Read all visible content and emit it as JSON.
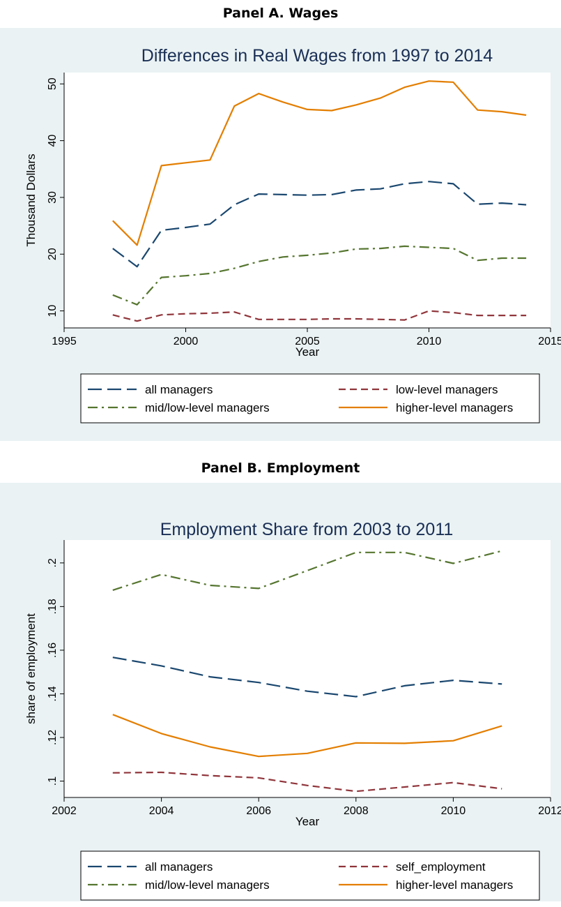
{
  "panels": [
    {
      "heading": "Panel A. Wages"
    },
    {
      "heading": "Panel B. Employment"
    }
  ],
  "chart_data": [
    {
      "type": "line",
      "title": "Differences in Real Wages from 1997 to 2014",
      "xlabel": "Year",
      "ylabel": "Thousand Dollars",
      "xlim": [
        1995,
        2015
      ],
      "ylim": [
        7,
        52
      ],
      "x_ticks": [
        1995,
        2000,
        2005,
        2010,
        2015
      ],
      "x_tick_labels": [
        "1995",
        "2000",
        "2005",
        "2010",
        "2015"
      ],
      "y_ticks": [
        10,
        20,
        30,
        40,
        50
      ],
      "y_tick_labels": [
        "10",
        "20",
        "30",
        "40",
        "50"
      ],
      "grid": false,
      "legend_position": "bottom",
      "x": [
        1997,
        1998,
        1999,
        2000,
        2001,
        2002,
        2003,
        2004,
        2005,
        2006,
        2007,
        2008,
        2009,
        2010,
        2011,
        2012,
        2013,
        2014
      ],
      "series": [
        {
          "name": "all managers",
          "color": "#1a476f",
          "style": "longdash",
          "values": [
            21.0,
            17.8,
            24.2,
            24.7,
            25.3,
            28.7,
            30.6,
            30.5,
            30.4,
            30.5,
            31.3,
            31.5,
            32.4,
            32.8,
            32.4,
            28.8,
            29.0,
            28.7
          ]
        },
        {
          "name": "low-level managers",
          "color": "#90353b",
          "style": "dash",
          "values": [
            9.3,
            8.2,
            9.3,
            9.5,
            9.6,
            9.8,
            8.5,
            8.5,
            8.5,
            8.6,
            8.6,
            8.5,
            8.4,
            10.0,
            9.7,
            9.2,
            9.2,
            9.2
          ]
        },
        {
          "name": "mid/low-level managers",
          "color": "#55752f",
          "style": "dashdot",
          "values": [
            12.8,
            11.1,
            15.9,
            16.2,
            16.6,
            17.5,
            18.7,
            19.5,
            19.8,
            20.2,
            20.9,
            21.0,
            21.4,
            21.2,
            21.0,
            18.9,
            19.3,
            19.3
          ]
        },
        {
          "name": "higher-level managers",
          "color": "#e37e00",
          "style": "solid",
          "values": [
            25.9,
            21.6,
            35.6,
            36.1,
            36.6,
            46.1,
            48.3,
            46.8,
            45.5,
            45.3,
            46.3,
            47.5,
            49.4,
            50.5,
            50.3,
            45.4,
            45.1,
            44.5
          ]
        }
      ]
    },
    {
      "type": "line",
      "title": "Employment Share from 2003 to 2011",
      "xlabel": "Year",
      "ylabel": "share of employment",
      "xlim": [
        2002,
        2012
      ],
      "ylim": [
        0.0925,
        0.2105
      ],
      "x_ticks": [
        2002,
        2004,
        2006,
        2008,
        2010,
        2012
      ],
      "x_tick_labels": [
        "2002",
        "2004",
        "2006",
        "2008",
        "2010",
        "2012"
      ],
      "y_ticks": [
        0.1,
        0.12,
        0.14,
        0.16,
        0.18,
        0.2
      ],
      "y_tick_labels": [
        ".1",
        ".12",
        ".14",
        ".16",
        ".18",
        ".2"
      ],
      "grid": false,
      "legend_position": "bottom",
      "x": [
        2003,
        2004,
        2005,
        2006,
        2007,
        2008,
        2009,
        2010,
        2011
      ],
      "series": [
        {
          "name": "all managers",
          "color": "#1a476f",
          "style": "longdash",
          "values": [
            0.1567,
            0.1528,
            0.1478,
            0.1452,
            0.1412,
            0.1387,
            0.1437,
            0.1462,
            0.1445
          ]
        },
        {
          "name": "self_employment",
          "color": "#90353b",
          "style": "dash",
          "values": [
            0.1038,
            0.104,
            0.1025,
            0.1015,
            0.098,
            0.0953,
            0.0973,
            0.0993,
            0.0965
          ]
        },
        {
          "name": "mid/low-level managers",
          "color": "#55752f",
          "style": "dashdot",
          "values": [
            0.1875,
            0.1947,
            0.1897,
            0.1883,
            0.1965,
            0.2048,
            0.2048,
            0.1998,
            0.2055
          ]
        },
        {
          "name": "higher-level managers",
          "color": "#e37e00",
          "style": "solid",
          "values": [
            0.1305,
            0.1218,
            0.1157,
            0.1113,
            0.1127,
            0.1175,
            0.1173,
            0.1185,
            0.1253
          ]
        }
      ]
    }
  ]
}
